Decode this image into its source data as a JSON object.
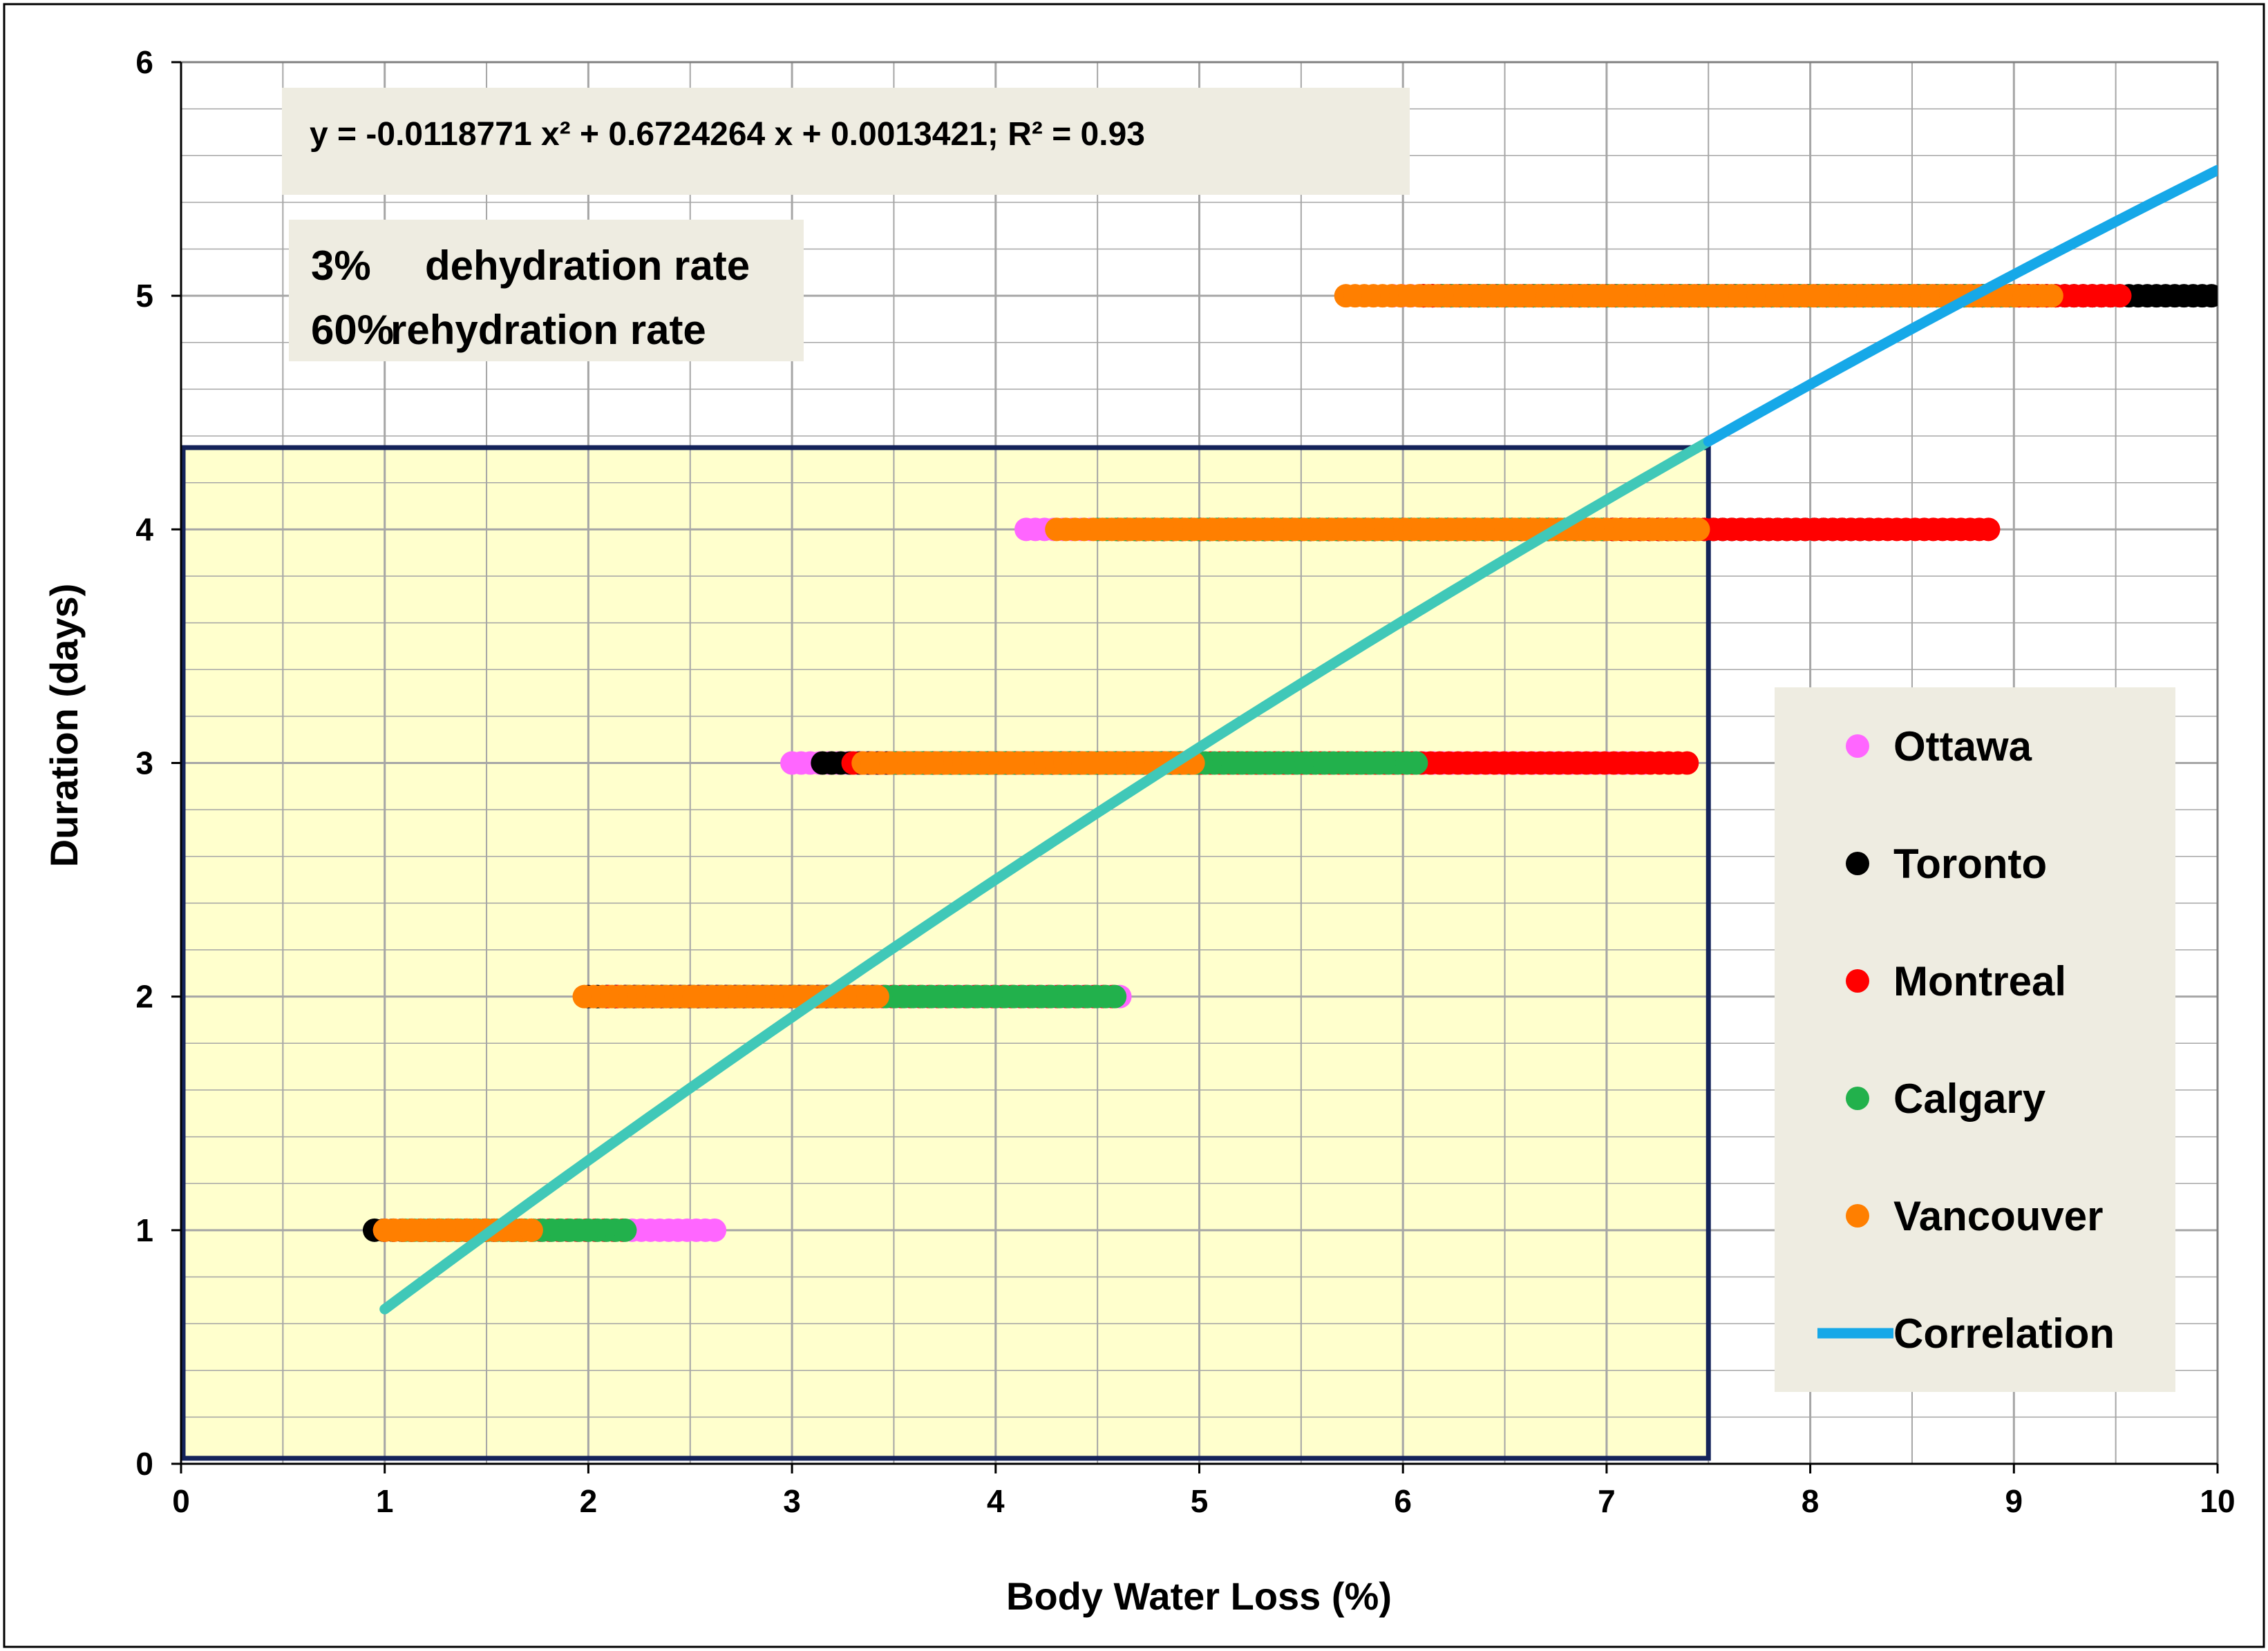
{
  "chart_data": {
    "type": "scatter",
    "title": "",
    "xlabel": "Body Water Loss (%)",
    "ylabel": "Duration (days)",
    "xlim": [
      0,
      10
    ],
    "ylim": [
      0,
      6
    ],
    "x_ticks": [
      "0",
      "1",
      "2",
      "3",
      "4",
      "5",
      "6",
      "7",
      "8",
      "9",
      "10"
    ],
    "y_ticks": [
      "0",
      "1",
      "2",
      "3",
      "4",
      "5",
      "6"
    ],
    "grid": true,
    "minor_grid": true,
    "legend_position": "right",
    "annotations": {
      "equation": "y = -0.0118771 x² + 0.6724264 x + 0.0013421;   R² = 0.93",
      "rate_line_1_value": "3%",
      "rate_line_1_label": "dehydration rate",
      "rate_line_2_value": "60%",
      "rate_line_2_label": "rehydration rate"
    },
    "highlight_region": {
      "x_range": [
        0,
        7.5
      ],
      "y_range": [
        0,
        4.35
      ],
      "fill": "#FFFFC0",
      "border": "#14235A"
    },
    "series": [
      {
        "name": "Ottawa",
        "color": "#FF66FF",
        "segments": [
          {
            "y": 1,
            "x_min": 1.0,
            "x_max": 2.65
          },
          {
            "y": 2,
            "x_min": 2.0,
            "x_max": 4.65
          },
          {
            "y": 3,
            "x_min": 3.0,
            "x_max": 7.2
          },
          {
            "y": 4,
            "x_min": 4.15,
            "x_max": 7.0
          },
          {
            "y": 5,
            "x_min": 5.95,
            "x_max": 9.1
          }
        ]
      },
      {
        "name": "Toronto",
        "color": "#000000",
        "segments": [
          {
            "y": 1,
            "x_min": 0.95,
            "x_max": 1.7
          },
          {
            "y": 2,
            "x_min": 2.0,
            "x_max": 3.4
          },
          {
            "y": 3,
            "x_min": 3.15,
            "x_max": 5.0
          },
          {
            "y": 4,
            "x_min": 4.6,
            "x_max": 8.3
          },
          {
            "y": 5,
            "x_min": 6.1,
            "x_max": 10.0
          }
        ]
      },
      {
        "name": "Montreal",
        "color": "#FF0000",
        "segments": [
          {
            "y": 1,
            "x_min": 1.0,
            "x_max": 2.2
          },
          {
            "y": 2,
            "x_min": 2.1,
            "x_max": 4.6
          },
          {
            "y": 3,
            "x_min": 3.3,
            "x_max": 7.4
          },
          {
            "y": 4,
            "x_min": 4.6,
            "x_max": 8.9
          },
          {
            "y": 5,
            "x_min": 6.1,
            "x_max": 9.55
          }
        ]
      },
      {
        "name": "Calgary",
        "color": "#22B14C",
        "segments": [
          {
            "y": 1,
            "x_min": 1.1,
            "x_max": 2.2
          },
          {
            "y": 2,
            "x_min": 2.2,
            "x_max": 4.6
          },
          {
            "y": 3,
            "x_min": 3.5,
            "x_max": 6.1
          },
          {
            "y": 4,
            "x_min": 4.5,
            "x_max": 7.0
          },
          {
            "y": 5,
            "x_min": 6.2,
            "x_max": 9.0
          }
        ]
      },
      {
        "name": "Vancouver",
        "color": "#FF7F00",
        "segments": [
          {
            "y": 1,
            "x_min": 1.0,
            "x_max": 1.72
          },
          {
            "y": 2,
            "x_min": 1.98,
            "x_max": 3.45
          },
          {
            "y": 3,
            "x_min": 3.35,
            "x_max": 5.0
          },
          {
            "y": 4,
            "x_min": 4.3,
            "x_max": 7.45
          },
          {
            "y": 5,
            "x_min": 5.72,
            "x_max": 9.2
          }
        ]
      }
    ],
    "correlation": {
      "name": "Correlation",
      "color_in_region": "#40C8B8",
      "color": "#16A8E8",
      "coefficients": {
        "a": -0.0118771,
        "b": 0.6724264,
        "c": 0.0013421
      },
      "r_squared": 0.93,
      "x_range": [
        1,
        10
      ]
    }
  }
}
